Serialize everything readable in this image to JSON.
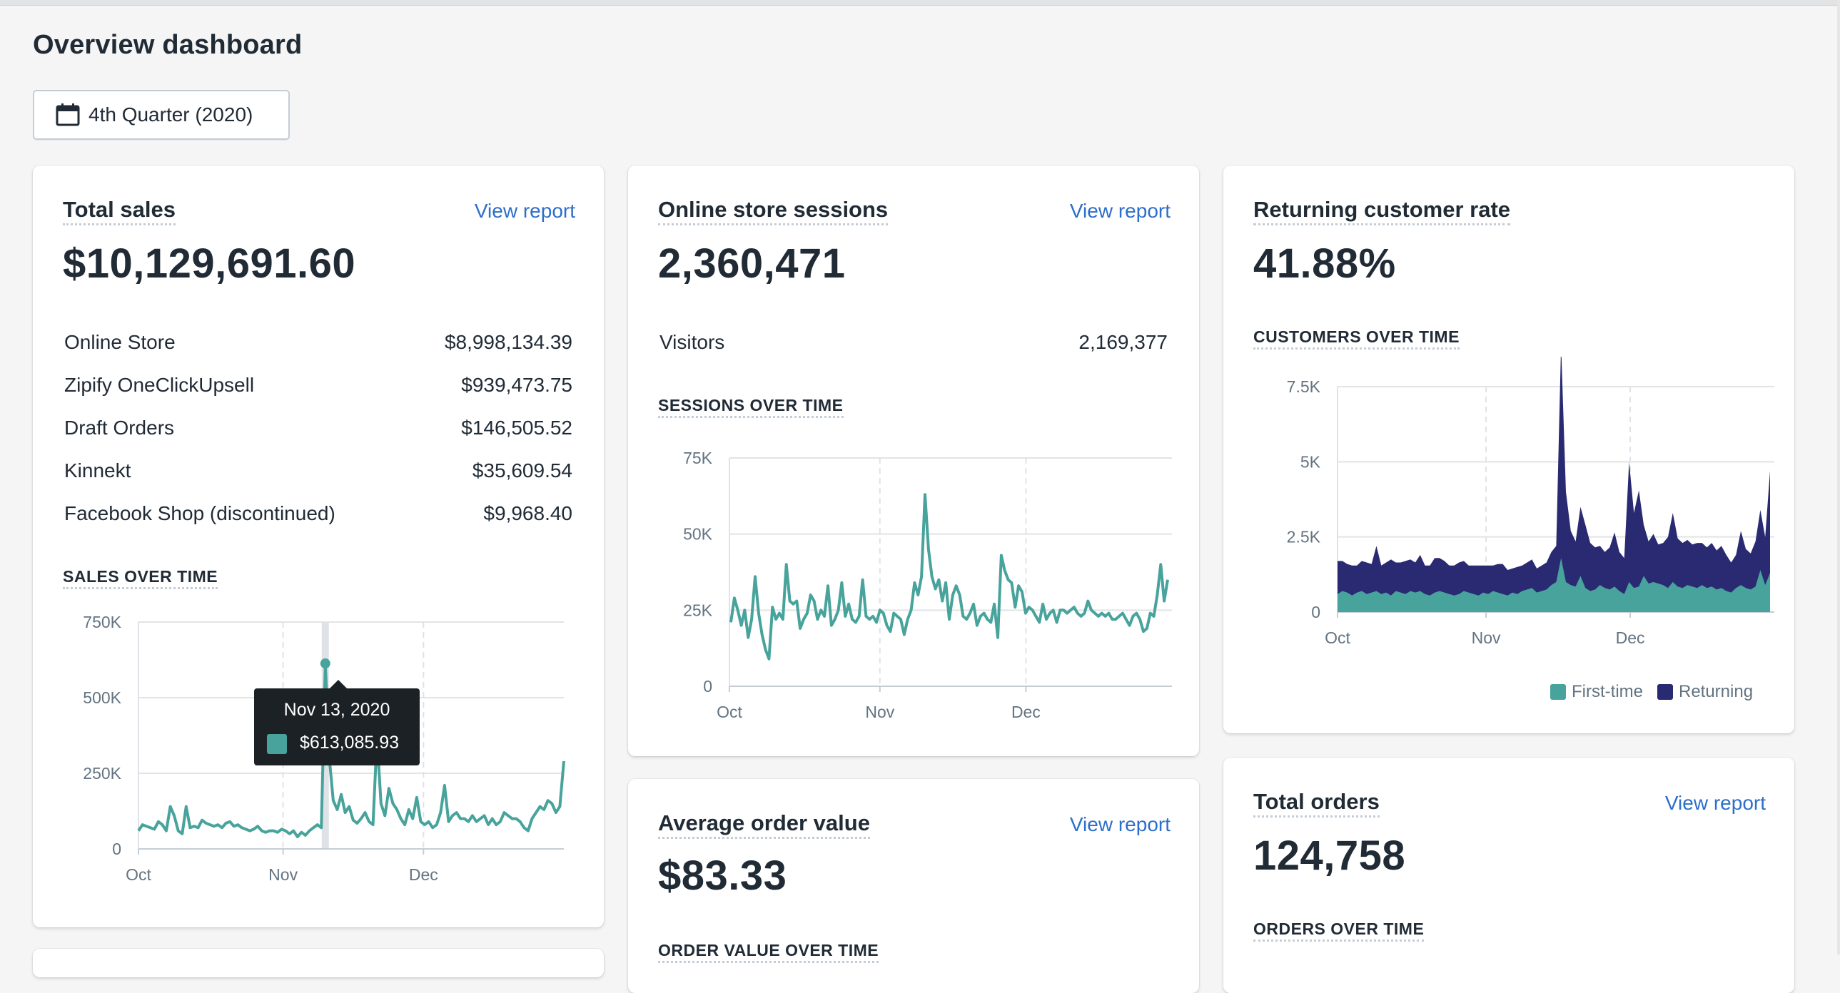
{
  "page": {
    "title": "Overview dashboard"
  },
  "date_range": {
    "label": "4th Quarter (2020)",
    "icon": "calendar-icon"
  },
  "colors": {
    "teal": "#47a39b",
    "navy": "#2a2a72",
    "link": "#2c6ecb"
  },
  "total_sales": {
    "title": "Total sales",
    "link": "View report",
    "value": "$10,129,691.60",
    "breakdown": [
      {
        "label": "Online Store",
        "value": "$8,998,134.39"
      },
      {
        "label": "Zipify OneClickUpsell",
        "value": "$939,473.75"
      },
      {
        "label": "Draft Orders",
        "value": "$146,505.52"
      },
      {
        "label": "Kinnekt",
        "value": "$35,609.54"
      },
      {
        "label": "Facebook Shop (discontinued)",
        "value": "$9,968.40"
      }
    ],
    "chart_label": "SALES OVER TIME",
    "tooltip": {
      "date": "Nov 13, 2020",
      "value": "$613,085.93"
    }
  },
  "online_sessions": {
    "title": "Online store sessions",
    "link": "View report",
    "value": "2,360,471",
    "visitors": {
      "label": "Visitors",
      "value": "2,169,377"
    },
    "chart_label": "SESSIONS OVER TIME"
  },
  "returning_rate": {
    "title": "Returning customer rate",
    "value": "41.88%",
    "chart_label": "CUSTOMERS OVER TIME",
    "legend": [
      "First-time",
      "Returning"
    ]
  },
  "avg_order": {
    "title": "Average order value",
    "link": "View report",
    "value": "$83.33",
    "chart_label": "ORDER VALUE OVER TIME"
  },
  "total_orders": {
    "title": "Total orders",
    "link": "View report",
    "value": "124,758",
    "chart_label": "ORDERS OVER TIME"
  },
  "chart_data": [
    {
      "id": "sales",
      "type": "line",
      "title": "SALES OVER TIME",
      "x_labels": [
        "Oct",
        "Nov",
        "Dec"
      ],
      "y_ticks": [
        "0",
        "250K",
        "500K",
        "750K"
      ],
      "ylim": [
        0,
        750000
      ],
      "series": [
        {
          "values": [
            60000,
            80000,
            75000,
            70000,
            65000,
            90000,
            80000,
            60000,
            140000,
            110000,
            60000,
            50000,
            140000,
            70000,
            75000,
            70000,
            95000,
            85000,
            80000,
            75000,
            80000,
            70000,
            85000,
            90000,
            75000,
            80000,
            70000,
            65000,
            60000,
            65000,
            75000,
            60000,
            55000,
            60000,
            60000,
            55000,
            65000,
            60000,
            50000,
            60000,
            40000,
            55000,
            45000,
            60000,
            70000,
            80000,
            70000,
            613085,
            300000,
            160000,
            130000,
            180000,
            120000,
            140000,
            95000,
            85000,
            100000,
            120000,
            90000,
            80000,
            370000,
            150000,
            110000,
            200000,
            150000,
            130000,
            100000,
            80000,
            130000,
            100000,
            170000,
            90000,
            80000,
            90000,
            70000,
            80000,
            120000,
            210000,
            90000,
            110000,
            120000,
            100000,
            100000,
            90000,
            110000,
            90000,
            100000,
            110000,
            80000,
            100000,
            80000,
            90000,
            120000,
            110000,
            100000,
            100000,
            90000,
            70000,
            60000,
            100000,
            120000,
            140000,
            130000,
            160000,
            150000,
            120000,
            140000,
            290000
          ]
        }
      ],
      "highlight": {
        "date": "Nov 13, 2020",
        "value": 613085.93
      }
    },
    {
      "id": "sessions",
      "type": "line",
      "title": "SESSIONS OVER TIME",
      "x_labels": [
        "Oct",
        "Nov",
        "Dec"
      ],
      "y_ticks": [
        "0",
        "25K",
        "50K",
        "75K"
      ],
      "ylim": [
        0,
        75000
      ],
      "series": [
        {
          "values": [
            21000,
            29000,
            25000,
            20000,
            25000,
            16000,
            22000,
            36000,
            24000,
            17000,
            12000,
            9000,
            26000,
            22000,
            24000,
            22000,
            40000,
            28000,
            27000,
            28000,
            19000,
            22000,
            24000,
            30000,
            28000,
            22000,
            25000,
            23000,
            33000,
            20000,
            22000,
            25000,
            34000,
            23000,
            27000,
            22000,
            21000,
            23000,
            35000,
            23000,
            22000,
            23000,
            21000,
            25000,
            24000,
            20000,
            18000,
            24000,
            23000,
            22000,
            17000,
            22000,
            25000,
            34000,
            30000,
            36000,
            63000,
            45000,
            36000,
            32000,
            35000,
            28000,
            34000,
            22000,
            30000,
            33000,
            30000,
            23000,
            22000,
            24000,
            27000,
            20000,
            23000,
            24000,
            22000,
            21000,
            27000,
            16000,
            43000,
            38000,
            35000,
            34000,
            26000,
            33000,
            31000,
            24000,
            26000,
            25000,
            23000,
            21000,
            27000,
            22000,
            24000,
            25000,
            21000,
            25000,
            25000,
            24000,
            25000,
            26000,
            24000,
            23000,
            24000,
            28000,
            25000,
            24000,
            23000,
            24000,
            23000,
            24000,
            22000,
            22000,
            23000,
            24000,
            22000,
            20000,
            23000,
            24000,
            22000,
            18000,
            19000,
            24000,
            23000,
            30000,
            40000,
            28000,
            35000
          ]
        }
      ]
    },
    {
      "id": "customers",
      "type": "area",
      "title": "CUSTOMERS OVER TIME",
      "x_labels": [
        "Oct",
        "Nov",
        "Dec"
      ],
      "y_ticks": [
        "0",
        "2.5K",
        "5K",
        "7.5K"
      ],
      "ylim": [
        0,
        7500
      ],
      "legend": "bottom-right",
      "series": [
        {
          "name": "First-time",
          "values": [
            600,
            700,
            650,
            550,
            650,
            700,
            600,
            650,
            700,
            600,
            650,
            550,
            700,
            650,
            600,
            700,
            650,
            700,
            600,
            550,
            650,
            700,
            650,
            600,
            550,
            600,
            700,
            650,
            600,
            550,
            650,
            600,
            700,
            650,
            600,
            550,
            650,
            600,
            700,
            750,
            800,
            650,
            700,
            750,
            900,
            1000,
            1800,
            1000,
            900,
            850,
            1200,
            800,
            700,
            750,
            900,
            800,
            750,
            850,
            700,
            600,
            1000,
            800,
            850,
            1200,
            950,
            1000,
            950,
            900,
            800,
            1000,
            850,
            800,
            900,
            850,
            800,
            900,
            800,
            850,
            750,
            800,
            700,
            650,
            800,
            900,
            800,
            750,
            850,
            1400,
            900,
            1300
          ]
        },
        {
          "name": "Returning",
          "values": [
            1100,
            1000,
            950,
            1000,
            900,
            1000,
            1050,
            950,
            1500,
            950,
            1000,
            1200,
            950,
            1000,
            1100,
            1050,
            1000,
            1200,
            950,
            1000,
            1150,
            1100,
            1050,
            950,
            1000,
            1050,
            1000,
            900,
            950,
            1000,
            900,
            950,
            850,
            950,
            1000,
            850,
            800,
            900,
            850,
            900,
            950,
            800,
            850,
            900,
            1100,
            1200,
            7100,
            3000,
            1800,
            1500,
            2300,
            2100,
            1600,
            1400,
            1300,
            1200,
            1400,
            1800,
            1300,
            1200,
            4000,
            2500,
            3200,
            1700,
            1400,
            1600,
            1300,
            1400,
            1700,
            2300,
            1600,
            1500,
            1500,
            1400,
            1500,
            1400,
            1350,
            1450,
            1300,
            1400,
            1200,
            1000,
            1100,
            1800,
            1300,
            1200,
            1500,
            2000,
            1600,
            3400
          ]
        }
      ]
    }
  ]
}
